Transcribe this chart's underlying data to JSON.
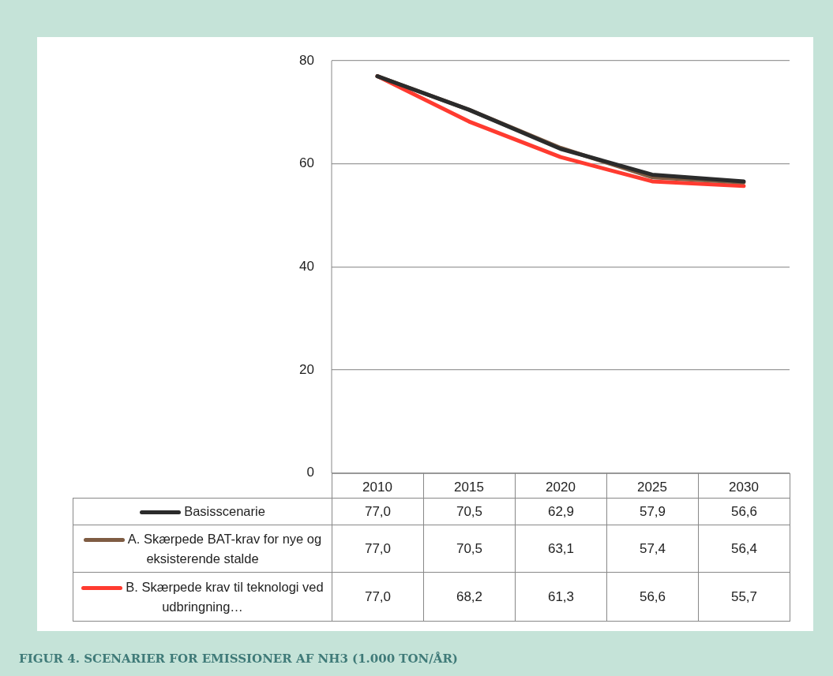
{
  "chart_data": {
    "type": "line",
    "annotations": [
      "FIGUR 4. SCENARIER FOR EMISSIONER AF NH3 (1.000 TON/ÅR)"
    ],
    "categories": [
      "2010",
      "2015",
      "2020",
      "2025",
      "2030"
    ],
    "series": [
      {
        "name": "Basisscenarie",
        "color": "#2b2b2b",
        "values": [
          77.0,
          70.5,
          62.9,
          57.9,
          56.6
        ],
        "value_labels": [
          "77,0",
          "70,5",
          "62,9",
          "57,9",
          "56,6"
        ]
      },
      {
        "name": "A. Skærpede BAT-krav for nye og eksisterende stalde",
        "color": "#7f5c43",
        "values": [
          77.0,
          70.5,
          63.1,
          57.4,
          56.4
        ],
        "value_labels": [
          "77,0",
          "70,5",
          "63,1",
          "57,4",
          "56,4"
        ]
      },
      {
        "name": "B. Skærpede krav til teknologi ved udbringning…",
        "color": "#ff3b30",
        "values": [
          77.0,
          68.2,
          61.3,
          56.6,
          55.7
        ],
        "value_labels": [
          "77,0",
          "68,2",
          "61,3",
          "56,6",
          "55,7"
        ]
      }
    ],
    "ylim": [
      0,
      80
    ],
    "yticks": [
      0,
      20,
      40,
      60,
      80
    ],
    "grid": "y",
    "legend": "bottom",
    "marker": "none",
    "line_style": "solid"
  }
}
